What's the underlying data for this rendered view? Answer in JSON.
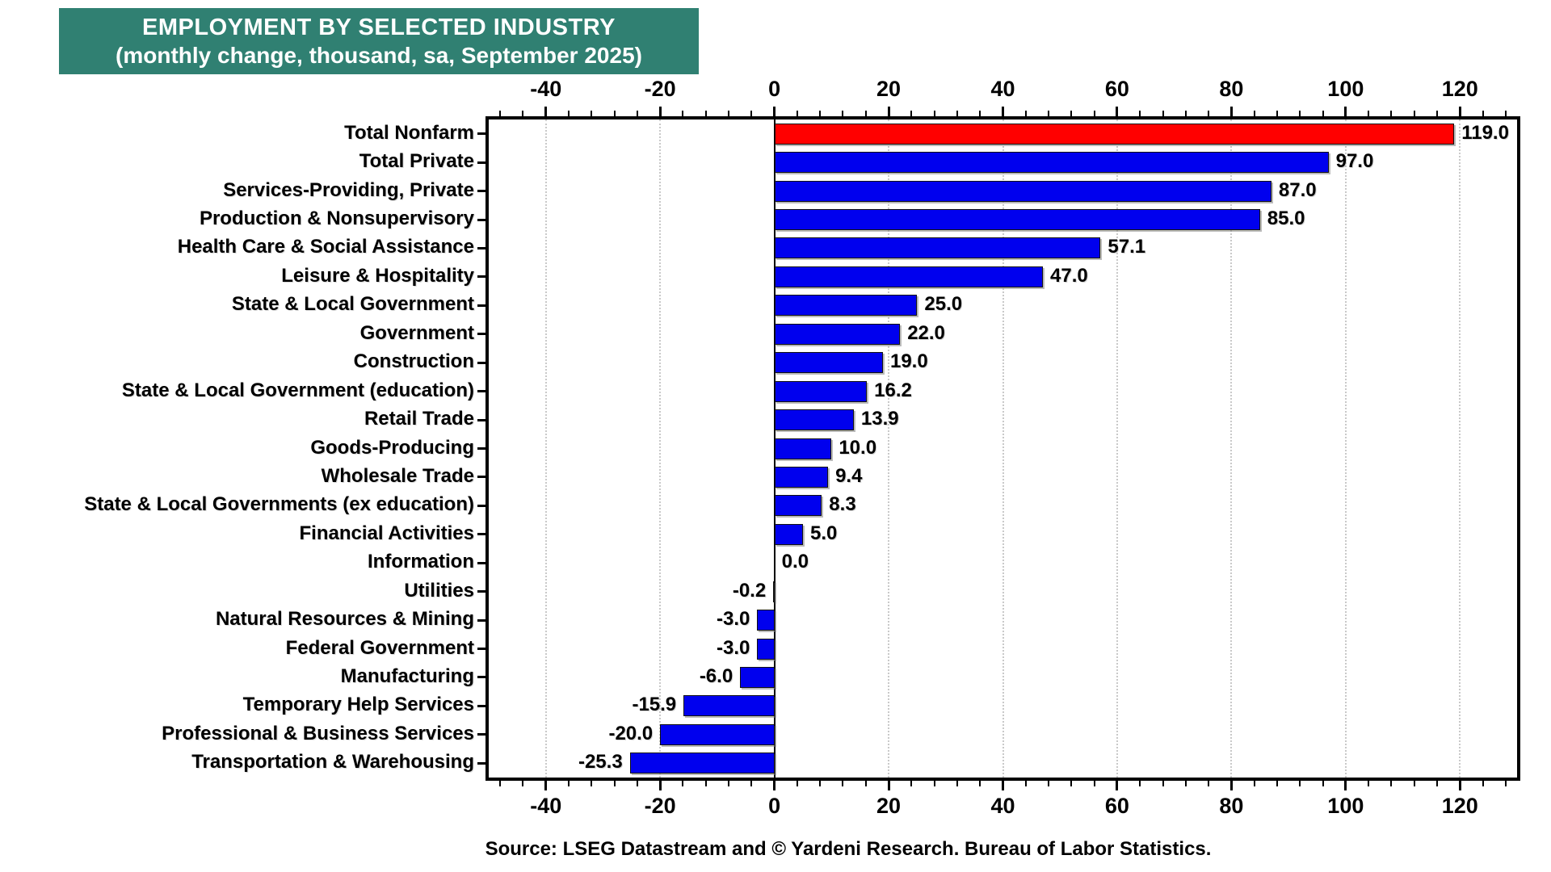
{
  "title": {
    "line1": "EMPLOYMENT BY SELECTED INDUSTRY",
    "line2": "(monthly change, thousand, sa, September 2025)"
  },
  "source": "Source: LSEG Datastream and © Yardeni Research. Bureau of Labor Statistics.",
  "colors": {
    "title_background": "#308072",
    "title_text": "#ffffff",
    "bar_default": "#0000EE",
    "bar_highlight": "#FF0000",
    "gridline": "#c9c9c9",
    "axis": "#000000"
  },
  "chart_data": {
    "type": "bar",
    "orientation": "horizontal",
    "title": "EMPLOYMENT BY SELECTED INDUSTRY",
    "subtitle": "(monthly change, thousand, sa, September 2025)",
    "categories": [
      "Total Nonfarm",
      "Total Private",
      "Services-Providing, Private",
      "Production & Nonsupervisory",
      "Health Care & Social Assistance",
      "Leisure & Hospitality",
      "State & Local Government",
      "Government",
      "Construction",
      "State & Local Government (education)",
      "Retail Trade",
      "Goods-Producing",
      "Wholesale Trade",
      "State & Local Governments (ex education)",
      "Financial Activities",
      "Information",
      "Utilities",
      "Natural Resources & Mining",
      "Federal Government",
      "Manufacturing",
      "Temporary Help Services",
      "Professional & Business Services",
      "Transportation & Warehousing"
    ],
    "values": [
      119.0,
      97.0,
      87.0,
      85.0,
      57.1,
      47.0,
      25.0,
      22.0,
      19.0,
      16.2,
      13.9,
      10.0,
      9.4,
      8.3,
      5.0,
      0.0,
      -0.2,
      -3.0,
      -3.0,
      -6.0,
      -15.9,
      -20.0,
      -25.3
    ],
    "highlight_index": 0,
    "value_label_decimals": 1,
    "xlim": [
      -50,
      130
    ],
    "x_major_ticks": [
      -40,
      -20,
      0,
      20,
      40,
      60,
      80,
      100,
      120
    ],
    "x_minor_tick_step": 4,
    "grid": "vertical dotted at major ticks, solid line at zero",
    "legend": "none"
  }
}
